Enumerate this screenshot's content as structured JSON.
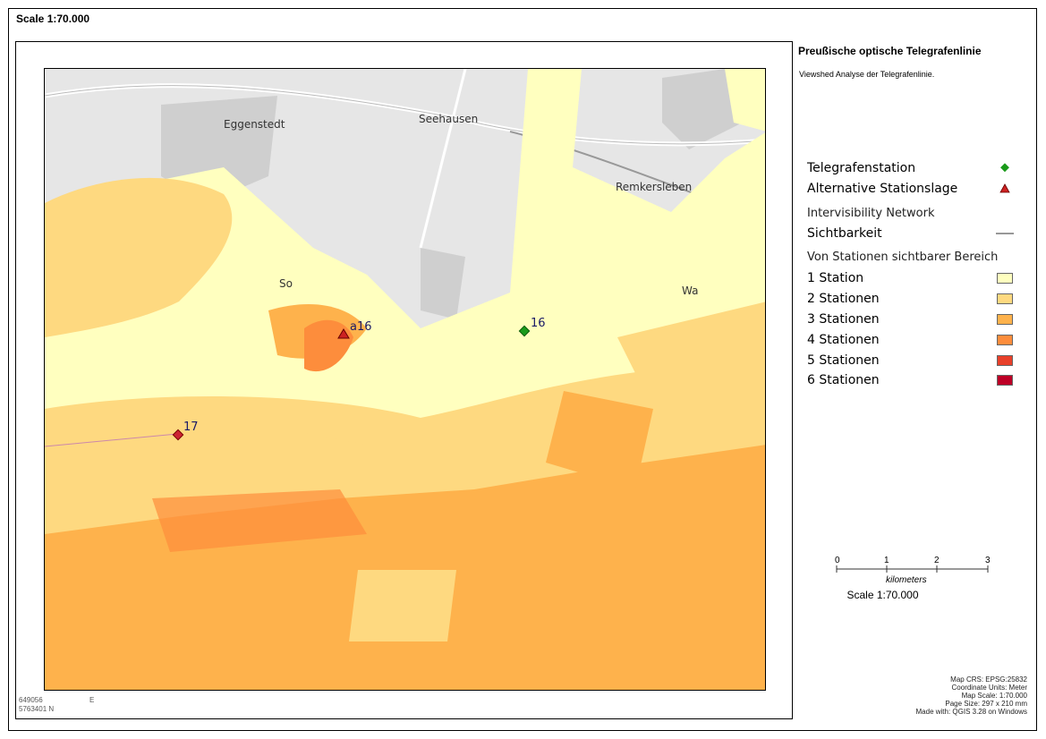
{
  "header": {
    "scale": "Scale 1:70.000"
  },
  "map": {
    "places": [
      "Eggenstedt",
      "Seehausen",
      "Remkersleben",
      "Wa",
      "So"
    ],
    "stations": [
      {
        "id": "16",
        "type": "Telegrafenstation",
        "color": "#1a9a1a"
      },
      {
        "id": "17",
        "type": "Telegrafenstation",
        "color": "#cc2233"
      },
      {
        "id": "a16",
        "type": "Alternative Stationslage",
        "color": "#cc2222"
      }
    ],
    "coords": {
      "easting": "649056",
      "easting_suffix": "E",
      "northing": "5763401 N"
    }
  },
  "sidebar": {
    "title": "Preußische optische Telegrafenlinie",
    "subtitle": "Viewshed Analyse der Telegrafenlinie.",
    "legend": {
      "points": [
        {
          "label": "Telegrafenstation",
          "symbol": "green-diamond",
          "color": "#1a9a1a"
        },
        {
          "label": "Alternative Stationslage",
          "symbol": "red-triangle",
          "color": "#cc2222"
        }
      ],
      "network_group": "Intervisibility Network",
      "network_item": {
        "label": "Sichtbarkeit",
        "color": "#777777"
      },
      "viewshed_group": "Von Stationen sichtbarer Bereich",
      "viewshed": [
        {
          "label": "1 Station",
          "color": "#ffffbf"
        },
        {
          "label": "2 Stationen",
          "color": "#fed980"
        },
        {
          "label": "3 Stationen",
          "color": "#feb24c"
        },
        {
          "label": "4 Stationen",
          "color": "#fd8d3c"
        },
        {
          "label": "5 Stationen",
          "color": "#e8402a"
        },
        {
          "label": "6 Stationen",
          "color": "#bd0026"
        }
      ]
    },
    "scalebar": {
      "ticks": [
        "0",
        "1",
        "2",
        "3"
      ],
      "unit": "kilometers",
      "caption": "Scale 1:70.000"
    },
    "meta": [
      "Map CRS: EPSG:25832",
      "Coordinate Units: Meter",
      "Map Scale:  1:70.000",
      "Page Size: 297 x 210 mm",
      "Made with: QGIS 3.28 on Windows"
    ]
  }
}
